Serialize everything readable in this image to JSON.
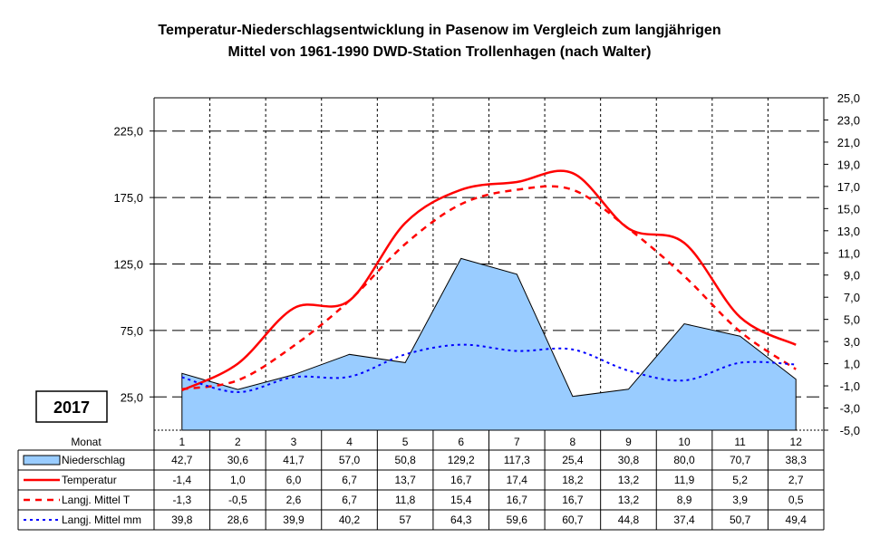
{
  "chart_data": {
    "type": "line",
    "title_line1": "Temperatur-Niederschlagsentwicklung in Pasenow im Vergleich zum langjährigen",
    "title_line2": "Mittel von 1961-1990 DWD-Station Trollenhagen (nach Walter)",
    "year_label": "2017",
    "table_header": "Monat",
    "categories": [
      "1",
      "2",
      "3",
      "4",
      "5",
      "6",
      "7",
      "8",
      "9",
      "10",
      "11",
      "12"
    ],
    "y_left": {
      "min": 0,
      "max": 250,
      "ticks": [
        "225,0",
        "175,0",
        "125,0",
        "75,0",
        "25,0"
      ],
      "tick_values": [
        225,
        175,
        125,
        75,
        25
      ]
    },
    "y_right": {
      "min": -5,
      "max": 25,
      "ticks": [
        "25,0",
        "23,0",
        "21,0",
        "19,0",
        "17,0",
        "15,0",
        "13,0",
        "11,0",
        "9,0",
        "7,0",
        "5,0",
        "3,0",
        "1,0",
        "-1,0",
        "-3,0",
        "-5,0"
      ],
      "tick_values": [
        25,
        23,
        21,
        19,
        17,
        15,
        13,
        11,
        9,
        7,
        5,
        3,
        1,
        -1,
        -3,
        -5
      ]
    },
    "grid": true,
    "series": [
      {
        "name": "Niederschlag",
        "kind": "area",
        "axis": "left",
        "color": "#99ccff",
        "values": [
          42.7,
          30.6,
          41.7,
          57.0,
          50.8,
          129.2,
          117.3,
          25.4,
          30.8,
          80.0,
          70.7,
          38.3
        ],
        "labels": [
          "42,7",
          "30,6",
          "41,7",
          "57,0",
          "50,8",
          "129,2",
          "117,3",
          "25,4",
          "30,8",
          "80,0",
          "70,7",
          "38,3"
        ]
      },
      {
        "name": "Temperatur",
        "kind": "line",
        "axis": "right",
        "color": "#ff0000",
        "values": [
          -1.4,
          1.0,
          6.0,
          6.7,
          13.7,
          16.7,
          17.4,
          18.2,
          13.2,
          11.9,
          5.2,
          2.7
        ],
        "labels": [
          "-1,4",
          "1,0",
          "6,0",
          "6,7",
          "13,7",
          "16,7",
          "17,4",
          "18,2",
          "13,2",
          "11,9",
          "5,2",
          "2,7"
        ]
      },
      {
        "name": "Langj. Mittel T",
        "kind": "dashed",
        "axis": "right",
        "color": "#ff0000",
        "values": [
          -1.3,
          -0.5,
          2.6,
          6.7,
          11.8,
          15.4,
          16.7,
          16.7,
          13.2,
          8.9,
          3.9,
          0.5
        ],
        "labels": [
          "-1,3",
          "-0,5",
          "2,6",
          "6,7",
          "11,8",
          "15,4",
          "16,7",
          "16,7",
          "13,2",
          "8,9",
          "3,9",
          "0,5"
        ]
      },
      {
        "name": "Langj. Mittel mm",
        "kind": "dotted",
        "axis": "left",
        "color": "#0000ff",
        "values": [
          39.8,
          28.6,
          39.9,
          40.2,
          57,
          64.3,
          59.6,
          60.7,
          44.8,
          37.4,
          50.7,
          49.4
        ],
        "labels": [
          "39,8",
          "28,6",
          "39,9",
          "40,2",
          "57",
          "64,3",
          "59,6",
          "60,7",
          "44,8",
          "37,4",
          "50,7",
          "49,4"
        ]
      }
    ]
  }
}
